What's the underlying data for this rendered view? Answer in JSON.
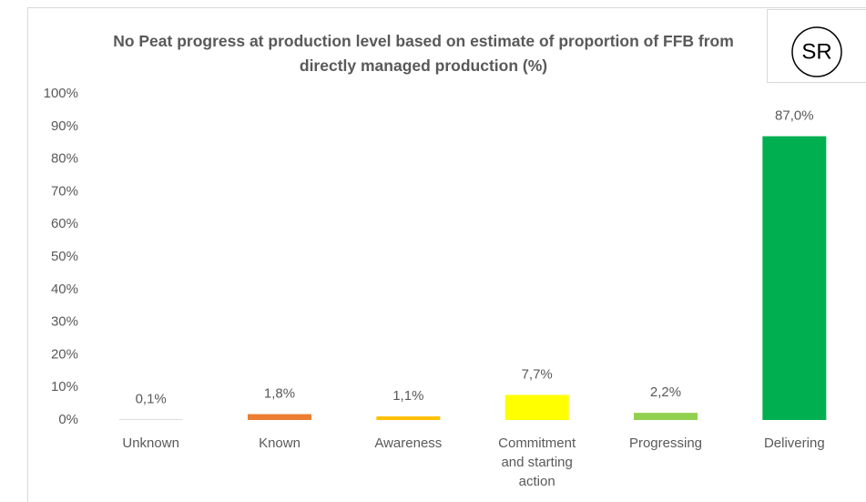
{
  "chart_data": {
    "type": "bar",
    "title": "No Peat progress at production level based on estimate of proportion of FFB from directly managed production (%)",
    "badge": "SR",
    "categories": [
      "Unknown",
      "Known",
      "Awareness",
      "Commitment and starting action",
      "Progressing",
      "Delivering"
    ],
    "values": [
      0.1,
      1.8,
      1.1,
      7.7,
      2.2,
      87.0
    ],
    "value_labels": [
      "0,1%",
      "1,8%",
      "1,1%",
      "7,7%",
      "2,2%",
      "87,0%"
    ],
    "colors": [
      "#a5a5a5",
      "#ed7d31",
      "#ffc000",
      "#ffff00",
      "#92d050",
      "#00b050"
    ],
    "ylim": [
      0,
      100
    ],
    "yticks": [
      {
        "value": 0,
        "label": "0%"
      },
      {
        "value": 10,
        "label": "10%"
      },
      {
        "value": 20,
        "label": "20%"
      },
      {
        "value": 30,
        "label": "30%"
      },
      {
        "value": 40,
        "label": "40%"
      },
      {
        "value": 50,
        "label": "50%"
      },
      {
        "value": 60,
        "label": "60%"
      },
      {
        "value": 70,
        "label": "70%"
      },
      {
        "value": 80,
        "label": "80%"
      },
      {
        "value": 90,
        "label": "90%"
      },
      {
        "value": 100,
        "label": "100%"
      }
    ],
    "grid": false
  }
}
